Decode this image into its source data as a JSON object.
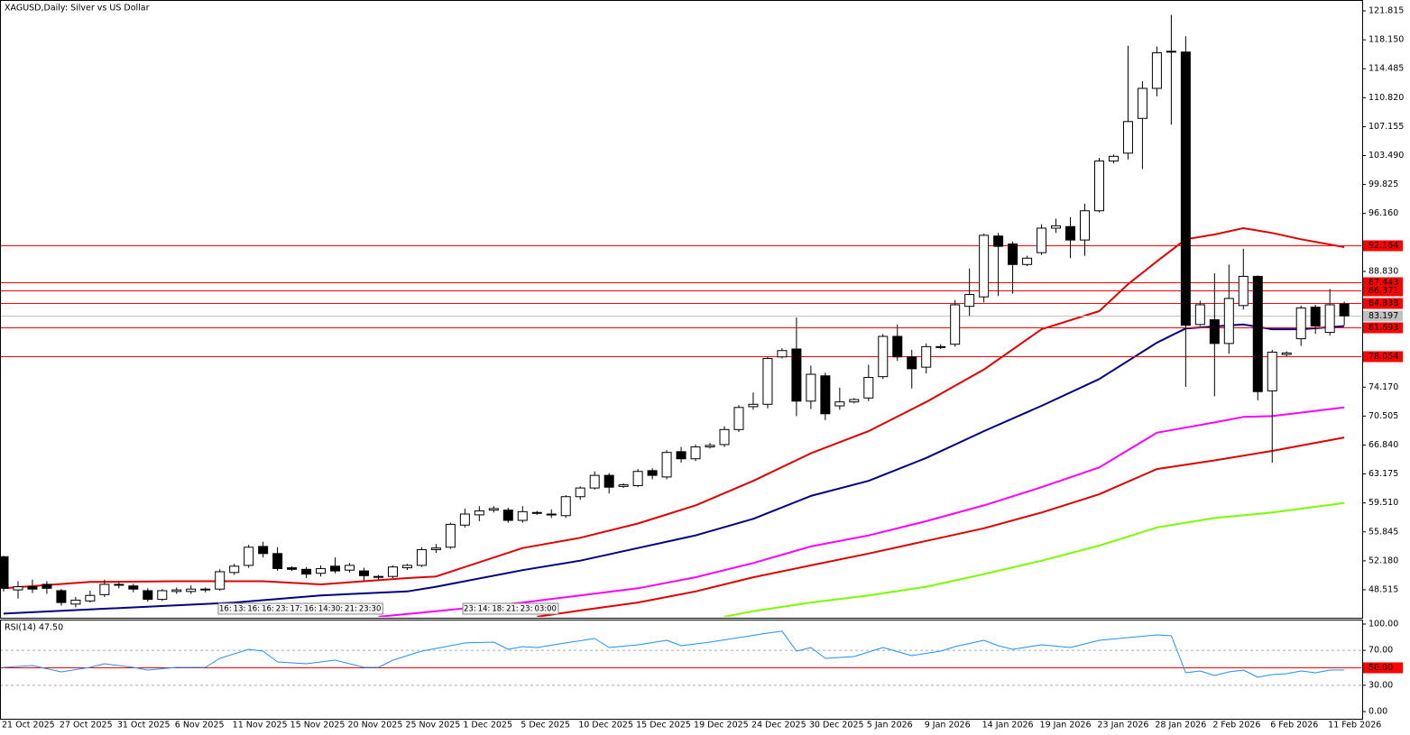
{
  "chart_data": {
    "type": "candlestick",
    "title": "XAGUSD,Daily: Silver vs US Dollar",
    "categories": [
      "21 Oct 2025",
      null,
      null,
      null,
      "27 Oct 2025",
      null,
      null,
      null,
      "31 Oct 2025",
      null,
      null,
      null,
      "6 Nov 2025",
      null,
      null,
      null,
      "11 Nov 2025",
      null,
      null,
      null,
      "15 Nov 2025",
      null,
      null,
      null,
      "20 Nov 2025",
      null,
      null,
      null,
      "25 Nov 2025",
      null,
      null,
      null,
      "1 Dec 2025",
      null,
      null,
      null,
      "5 Dec 2025",
      null,
      null,
      null,
      "10 Dec 2025",
      null,
      null,
      null,
      "15 Dec 2025",
      null,
      null,
      null,
      "19 Dec 2025",
      null,
      null,
      null,
      "24 Dec 2025",
      null,
      null,
      null,
      "30 Dec 2025",
      null,
      null,
      null,
      "5 Jan 2026",
      null,
      null,
      null,
      "9 Jan 2026",
      null,
      null,
      null,
      "14 Jan 2026",
      null,
      null,
      null,
      "19 Jan 2026",
      null,
      null,
      null,
      "23 Jan 2026",
      null,
      null,
      null,
      "28 Jan 2026",
      null,
      null,
      null,
      "2 Feb 2026",
      null,
      null,
      null,
      "6 Feb 2026",
      null,
      null,
      null,
      "11 Feb 2026",
      null
    ],
    "open": [
      52.7,
      48.5,
      48.9,
      49.2,
      48.4,
      46.7,
      47.1,
      47.9,
      49.1,
      49.0,
      48.4,
      47.3,
      48.3,
      48.3,
      48.5,
      48.6,
      50.7,
      51.6,
      54.0,
      53.1,
      51.3,
      51.1,
      50.6,
      51.5,
      51.0,
      50.9,
      50.2,
      50.2,
      51.3,
      51.6,
      53.6,
      53.9,
      56.7,
      58.0,
      58.6,
      58.6,
      57.3,
      58.3,
      58.1,
      57.9,
      60.3,
      61.4,
      63.0,
      61.6,
      61.7,
      63.6,
      62.8,
      66.0,
      65.1,
      66.6,
      66.9,
      68.8,
      71.7,
      72.0,
      78.0,
      79.0,
      72.4,
      75.6,
      71.8,
      72.3,
      72.8,
      75.5,
      80.6,
      78.0,
      76.7,
      79.3,
      79.6,
      84.4,
      85.6,
      93.3,
      92.3,
      89.7,
      91.2,
      94.3,
      94.5,
      92.8,
      96.5,
      102.8,
      103.8,
      108.2,
      112.0,
      116.7,
      116.6,
      82.1,
      82.7,
      79.7,
      84.5,
      88.2,
      73.7,
      78.3,
      80.3,
      84.3,
      81.1,
      84.7
    ],
    "high": [
      52.8,
      49.6,
      49.8,
      49.6,
      48.6,
      47.6,
      48.4,
      49.8,
      49.6,
      49.3,
      48.7,
      48.6,
      48.8,
      49.1,
      48.8,
      51.1,
      51.8,
      54.2,
      54.6,
      53.9,
      51.5,
      51.4,
      51.6,
      52.6,
      51.9,
      51.3,
      50.4,
      51.6,
      51.8,
      53.9,
      54.3,
      57.0,
      58.8,
      59.1,
      59.1,
      58.9,
      59.1,
      58.5,
      58.7,
      60.5,
      61.6,
      63.5,
      63.3,
      62.0,
      63.8,
      63.9,
      66.2,
      66.6,
      66.9,
      67.1,
      69.2,
      71.9,
      73.5,
      78.0,
      79.1,
      83.0,
      76.9,
      76.0,
      74.1,
      72.8,
      77.0,
      80.9,
      82.1,
      78.9,
      79.7,
      79.6,
      85.2,
      89.2,
      93.6,
      93.7,
      92.6,
      90.8,
      94.8,
      95.5,
      95.7,
      97.4,
      103.2,
      103.6,
      117.4,
      112.9,
      117.3,
      121.3,
      118.6,
      85.1,
      88.6,
      89.7,
      91.7,
      88.3,
      78.9,
      78.7,
      84.5,
      84.6,
      86.6,
      85.0
    ],
    "low": [
      48.3,
      47.4,
      48.1,
      48.0,
      46.5,
      46.3,
      46.9,
      47.6,
      48.7,
      48.2,
      47.0,
      47.1,
      48.0,
      48.0,
      48.2,
      48.4,
      50.4,
      51.3,
      52.6,
      50.9,
      50.9,
      50.0,
      50.2,
      50.6,
      50.7,
      49.6,
      49.8,
      50.0,
      51.0,
      51.4,
      53.2,
      53.7,
      56.4,
      57.2,
      58.3,
      57.0,
      57.0,
      58.0,
      57.6,
      57.6,
      59.9,
      61.2,
      60.7,
      61.4,
      61.5,
      62.5,
      62.5,
      64.6,
      64.8,
      66.4,
      66.6,
      68.5,
      71.3,
      71.5,
      77.8,
      70.5,
      71.4,
      70.0,
      71.3,
      72.1,
      72.4,
      75.2,
      77.5,
      74.0,
      75.9,
      79.0,
      79.3,
      83.2,
      84.9,
      85.7,
      86.0,
      89.5,
      90.9,
      93.7,
      90.5,
      90.8,
      96.3,
      102.5,
      103.0,
      101.8,
      111.0,
      107.4,
      74.2,
      81.9,
      73.0,
      78.4,
      84.0,
      72.5,
      64.6,
      78.1,
      79.4,
      80.9,
      80.7,
      82.0
    ],
    "close": [
      48.7,
      48.9,
      48.6,
      48.7,
      46.9,
      47.2,
      47.8,
      49.2,
      49.2,
      48.6,
      47.3,
      48.4,
      48.5,
      48.6,
      48.6,
      50.8,
      51.5,
      53.9,
      53.1,
      51.2,
      51.1,
      50.5,
      51.2,
      50.9,
      51.6,
      50.3,
      50.1,
      51.4,
      51.6,
      53.6,
      53.8,
      56.8,
      58.1,
      58.5,
      58.8,
      57.3,
      58.4,
      58.2,
      58.0,
      60.3,
      61.4,
      63.0,
      61.5,
      61.8,
      63.5,
      63.0,
      65.9,
      65.1,
      66.6,
      66.8,
      68.8,
      71.6,
      72.0,
      77.8,
      78.8,
      72.4,
      75.8,
      70.8,
      72.3,
      72.6,
      75.4,
      80.6,
      78.0,
      76.5,
      79.3,
      79.2,
      84.6,
      85.9,
      93.4,
      92.0,
      89.7,
      90.5,
      94.3,
      94.6,
      92.8,
      96.5,
      102.8,
      103.4,
      107.8,
      112.0,
      116.5,
      116.7,
      82.0,
      84.6,
      79.7,
      85.4,
      88.2,
      73.6,
      78.6,
      78.5,
      84.2,
      81.9,
      84.6,
      83.197
    ],
    "up_color": "#ffffff",
    "down_color": "#000000",
    "ylim": [
      44.97,
      123.19
    ],
    "yticks": [
      121.815,
      {
        "value": 118.15,
        "label": "118.150"
      },
      114.485,
      {
        "value": 110.82,
        "label": "110.820"
      },
      107.155,
      {
        "value": 103.49,
        "label": "103.490"
      },
      99.825,
      {
        "value": 96.16,
        "label": "96.160"
      },
      {
        "value": 88.83,
        "label": "88.830"
      },
      {
        "value": 74.17,
        "label": "74.170"
      },
      70.505,
      {
        "value": 66.84,
        "label": "66.840"
      },
      63.175,
      {
        "value": 59.51,
        "label": "59.510"
      },
      55.845,
      {
        "value": 52.18,
        "label": "52.180"
      },
      48.515
    ],
    "levels": [
      {
        "value": 92.164,
        "color": "#ff0000"
      },
      {
        "value": 87.443,
        "color": "#ff0000"
      },
      {
        "value": 86.371,
        "color": "#ff0000"
      },
      {
        "value": 84.838,
        "color": "#ff0000"
      },
      {
        "value": 83.197,
        "color": "#c0c0c0"
      },
      {
        "value": 81.693,
        "color": "#ff0000"
      },
      {
        "value": 78.054,
        "color": "#ff0000"
      }
    ],
    "moving_averages": [
      {
        "color": "#e00000",
        "x": [
          0,
          6,
          12,
          18,
          22,
          28,
          30,
          36,
          40,
          44,
          48,
          52,
          56,
          60,
          64,
          68,
          72,
          76,
          78,
          80,
          82,
          84,
          86,
          88,
          90,
          93
        ],
        "values": [
          48.7,
          49.5,
          49.6,
          49.6,
          49.2,
          50.0,
          50.2,
          53.8,
          55.1,
          56.9,
          59.2,
          62.3,
          65.8,
          68.6,
          72.3,
          76.4,
          81.5,
          83.8,
          87.2,
          90.1,
          92.9,
          93.5,
          94.3,
          93.7,
          92.9,
          91.9
        ]
      },
      {
        "color": "#000080",
        "x": [
          0,
          16,
          22,
          28,
          30,
          36,
          40,
          44,
          48,
          52,
          56,
          60,
          64,
          68,
          72,
          76,
          80,
          82,
          86,
          88,
          90,
          93
        ],
        "values": [
          45.5,
          46.9,
          47.8,
          48.3,
          48.9,
          51.0,
          52.2,
          53.8,
          55.4,
          57.5,
          60.4,
          62.3,
          65.2,
          68.6,
          71.8,
          75.2,
          79.8,
          81.6,
          82.1,
          81.5,
          81.5,
          81.9
        ]
      },
      {
        "color": "#ff00ff",
        "x": [
          26,
          30,
          36,
          40,
          44,
          48,
          52,
          56,
          60,
          64,
          68,
          72,
          76,
          80,
          84,
          86,
          88,
          93
        ],
        "values": [
          45.1,
          45.8,
          46.9,
          47.8,
          48.7,
          50.1,
          51.9,
          54.0,
          55.4,
          57.2,
          59.2,
          61.5,
          64.0,
          68.4,
          69.7,
          70.4,
          70.5,
          71.6
        ]
      },
      {
        "color": "#e00000",
        "x": [
          37,
          40,
          44,
          48,
          52,
          56,
          60,
          64,
          68,
          72,
          76,
          80,
          84,
          88,
          93
        ],
        "values": [
          45.1,
          45.9,
          46.9,
          48.3,
          50.1,
          51.6,
          53.1,
          54.7,
          56.3,
          58.3,
          60.6,
          63.8,
          64.9,
          66.1,
          67.8
        ]
      },
      {
        "color": "#7cfc00",
        "x": [
          50,
          52,
          56,
          60,
          64,
          68,
          72,
          76,
          80,
          84,
          88,
          93
        ],
        "values": [
          45.1,
          45.8,
          46.9,
          47.8,
          48.9,
          50.5,
          52.2,
          54.1,
          56.4,
          57.6,
          58.3,
          59.5
        ]
      }
    ],
    "events": [
      [
        "16:",
        "13:",
        "16:",
        "16:",
        "23:",
        "17:",
        "16:",
        "14:30:",
        "21:",
        "23:30"
      ],
      [
        "23:",
        "14:",
        "18:",
        "21:",
        "23:",
        "03:00"
      ]
    ],
    "rsi": {
      "title": "RSI(14) 47.50",
      "color": "#1e90ff",
      "x": [
        0,
        2,
        4,
        6,
        7,
        9,
        10,
        12,
        14,
        15,
        17,
        18,
        19,
        21,
        23,
        25,
        26,
        27,
        29,
        31,
        32,
        34,
        35,
        36,
        37,
        39,
        41,
        42,
        44,
        46,
        47,
        49,
        51,
        53,
        54,
        55,
        56,
        57,
        59,
        61,
        63,
        65,
        66,
        68,
        69,
        70,
        72,
        74,
        76,
        78,
        80,
        81,
        82,
        83,
        84,
        85,
        86,
        87,
        88,
        89,
        90,
        91,
        92,
        93
      ],
      "values": [
        50.5,
        52.6,
        45.4,
        50.5,
        54.6,
        50.5,
        47.4,
        50.5,
        50.5,
        60.8,
        71.1,
        69.1,
        56.7,
        54.6,
        58.8,
        50.5,
        50.5,
        58.8,
        69.1,
        75.3,
        78.4,
        79.4,
        71.1,
        74.2,
        73.2,
        78.4,
        83.5,
        73.2,
        76.3,
        81.4,
        75.3,
        79.4,
        84.5,
        89.7,
        91.8,
        69.1,
        73.2,
        60.8,
        62.9,
        73.2,
        63.9,
        69.1,
        74.2,
        81.4,
        75.3,
        71.1,
        76.3,
        73.2,
        81.4,
        84.5,
        87.6,
        86.6,
        44.3,
        46.4,
        41.2,
        45.4,
        47.4,
        39.2,
        42.3,
        43.3,
        46.4,
        44.3,
        47.4,
        47.5
      ],
      "ylim": [
        -8.25,
        105.15
      ],
      "yticks": [
        {
          "value": 100,
          "label": "100.00"
        },
        {
          "value": 70,
          "label": "70.00"
        },
        {
          "value": 30,
          "label": "30.00"
        },
        {
          "value": 0,
          "label": "0.00"
        }
      ],
      "dashed_levels": [
        70,
        30
      ],
      "level": {
        "value": 50,
        "label": "50.00",
        "color": "#ff0000"
      }
    }
  }
}
